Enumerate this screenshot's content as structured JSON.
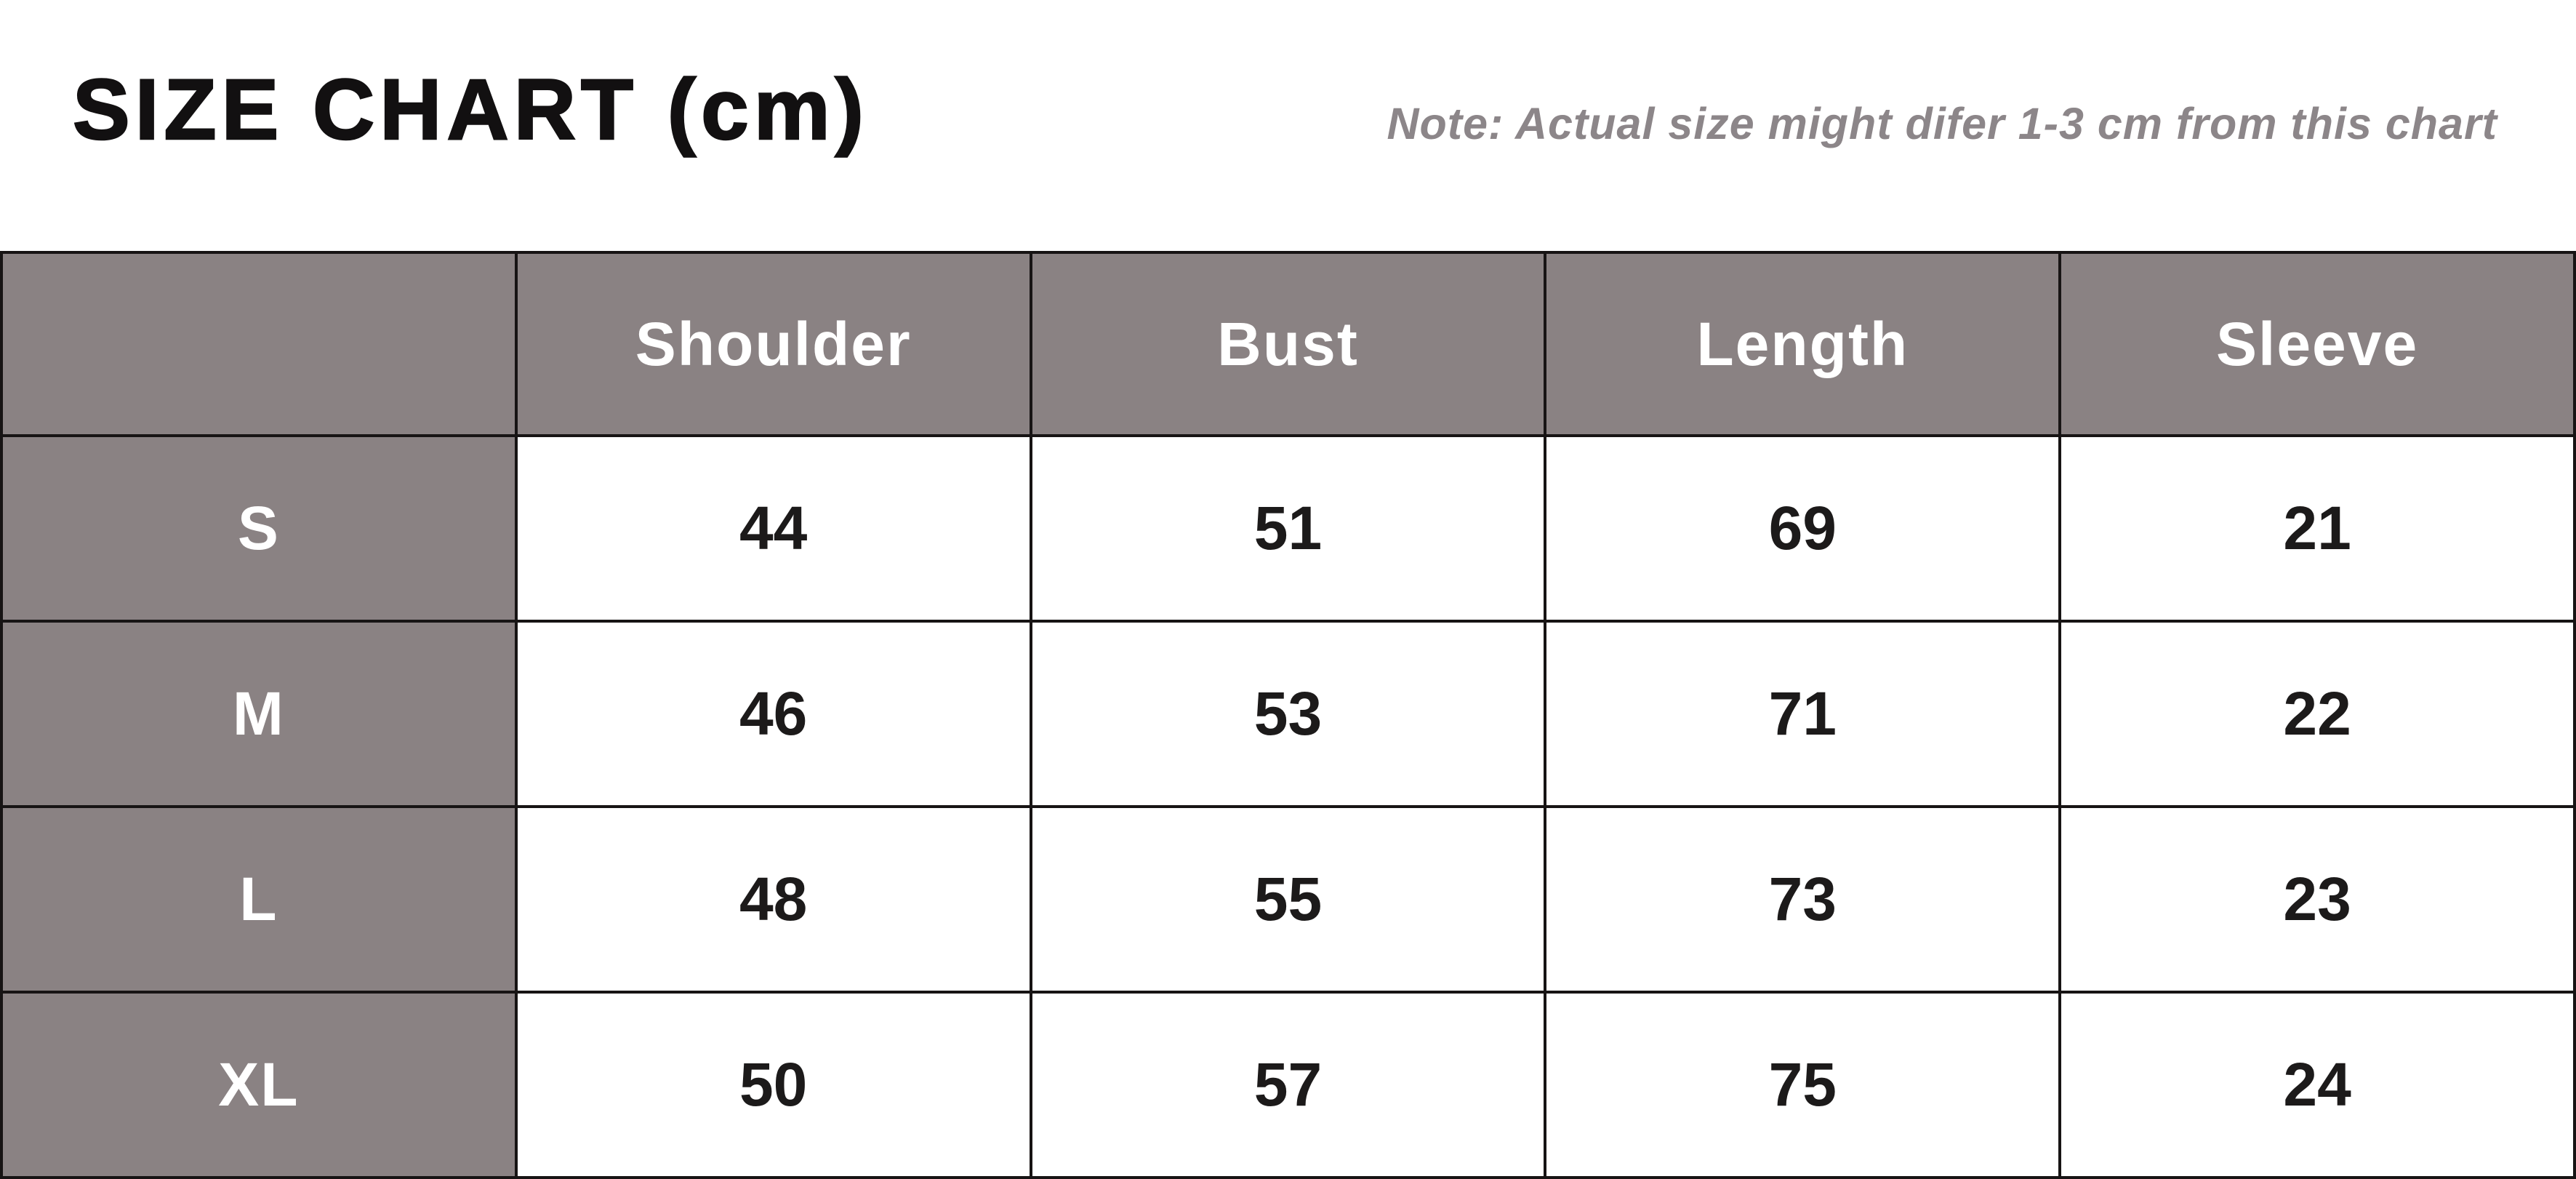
{
  "colors": {
    "header_gray": "#8a8283",
    "border_black": "#171414",
    "note_gray": "#8c8689",
    "title_color": "#121011",
    "header_text": "#ffffff",
    "value_text": "#1c1a1a"
  },
  "chart_data": {
    "type": "table",
    "title": "SIZE CHART (cm)",
    "note": "Note: Actual size might difer 1-3 cm from this chart",
    "unit": "cm",
    "columns": [
      "",
      "Shoulder",
      "Bust",
      "Length",
      "Sleeve"
    ],
    "rows": [
      {
        "size": "S",
        "values": [
          44,
          51,
          69,
          21
        ]
      },
      {
        "size": "M",
        "values": [
          46,
          53,
          71,
          22
        ]
      },
      {
        "size": "L",
        "values": [
          48,
          55,
          73,
          23
        ]
      },
      {
        "size": "XL",
        "values": [
          50,
          57,
          75,
          24
        ]
      }
    ],
    "layout": {
      "grid": "5 equal columns, 5 rows",
      "header_row_shaded": true,
      "first_column_shaded": true
    }
  }
}
